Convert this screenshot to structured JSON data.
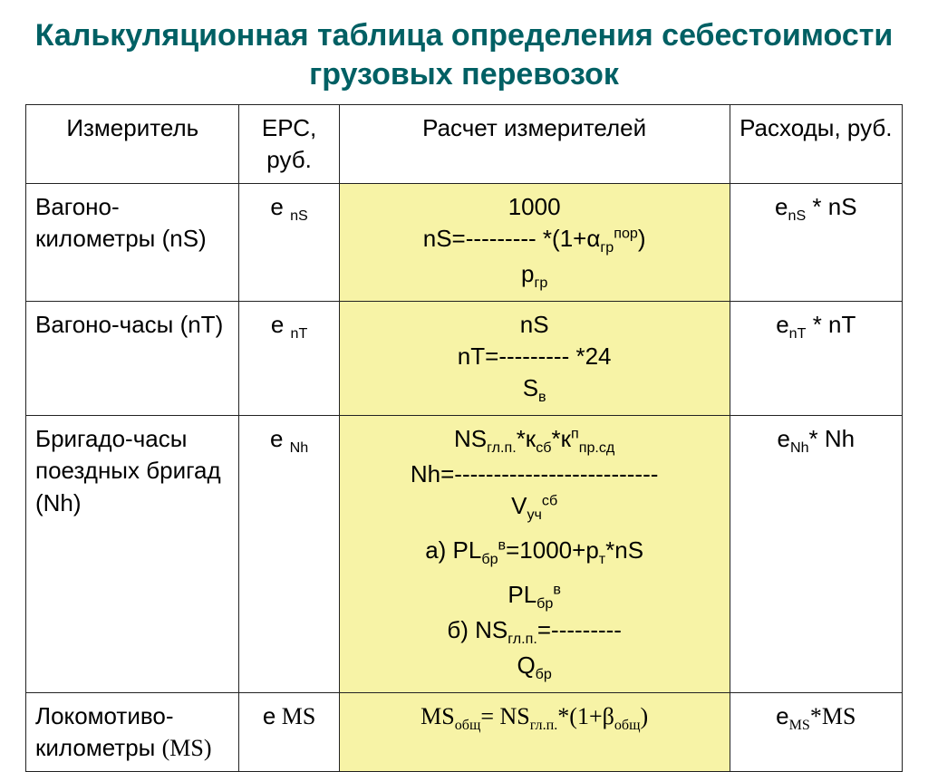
{
  "title": "Калькуляционная таблица определения себестоимости грузовых перевозок",
  "columns": {
    "c1": "Измеритель",
    "c2": "ЕРС, руб.",
    "c3": "Расчет измерителей",
    "c4": "Расходы, руб."
  },
  "rows": {
    "r1": {
      "c1": "Вагоно-километры (nS)",
      "c2_base": "е",
      "c2_sub": "nS",
      "c3_top": "1000",
      "c3_prefix": "nS=",
      "c3_dash": "---------",
      "c3_mult": " *(1+α",
      "c3_alpha_sub": "гр",
      "c3_alpha_sup": "пор",
      "c3_close": ")",
      "c3_bot": "p",
      "c3_bot_sub": "гр",
      "c4_pre": "е",
      "c4_sub": "nS",
      "c4_end": " * nS"
    },
    "r2": {
      "c1": "Вагоно-часы (nT)",
      "c2_base": "е",
      "c2_sub": "nT",
      "c3_top": "nS",
      "c3_prefix": "nT=",
      "c3_dash": "---------",
      "c3_mult": " *24",
      "c3_bot": "S",
      "c3_bot_sub": "в",
      "c4_pre": "е",
      "c4_sub": "nT",
      "c4_end": " * nT"
    },
    "r3": {
      "c1": "Бригадо-часы поездных бригад (Nh)",
      "c2_base": "е",
      "c2_sub": "Nh",
      "c3_num_pre": "NS",
      "c3_num_sub": "гл.п.",
      "c3_num_k1": "*к",
      "c3_num_k1_sub": "сб",
      "c3_num_k2": "*к",
      "c3_num_k2_sup": "п",
      "c3_num_k2_sub": "пр.сд",
      "c3_prefix": "Nh=",
      "c3_dash": "--------------------------",
      "c3_den": "V",
      "c3_den_sub": "уч",
      "c3_den_sup": "сб",
      "c3_line_a_pre": "а) PL",
      "c3_line_a_sub": "бр",
      "c3_line_a_sup": "в",
      "c3_line_a_rest": "=1000+p",
      "c3_line_a_pt_sub": "т",
      "c3_line_a_end": "*nS",
      "c3_b_num_pre": "PL",
      "c3_b_num_sub": "бр",
      "c3_b_num_sup": "в",
      "c3_b_prefix": "б) NS",
      "c3_b_prefix_sub": "гл.п.",
      "c3_b_eq": "=",
      "c3_b_dash": "---------",
      "c3_b_den": "Q",
      "c3_b_den_sub": "бр",
      "c4_pre": "е",
      "c4_sub": "Nh",
      "c4_end": "* Nh"
    },
    "r4": {
      "c1_pre": "Локомотиво-километры ",
      "c1_serif": "(MS)",
      "c2_base": "е",
      "c2_ms": " MS",
      "c3_pre": "MS",
      "c3_sub1": "общ",
      "c3_eq": "= NS",
      "c3_sub2": "гл.п.",
      "c3_mid": "*(1+β",
      "c3_sub3": "общ",
      "c3_end": ")",
      "c4_pre": "е",
      "c4_sub": "MS",
      "c4_end": "*MS"
    }
  }
}
